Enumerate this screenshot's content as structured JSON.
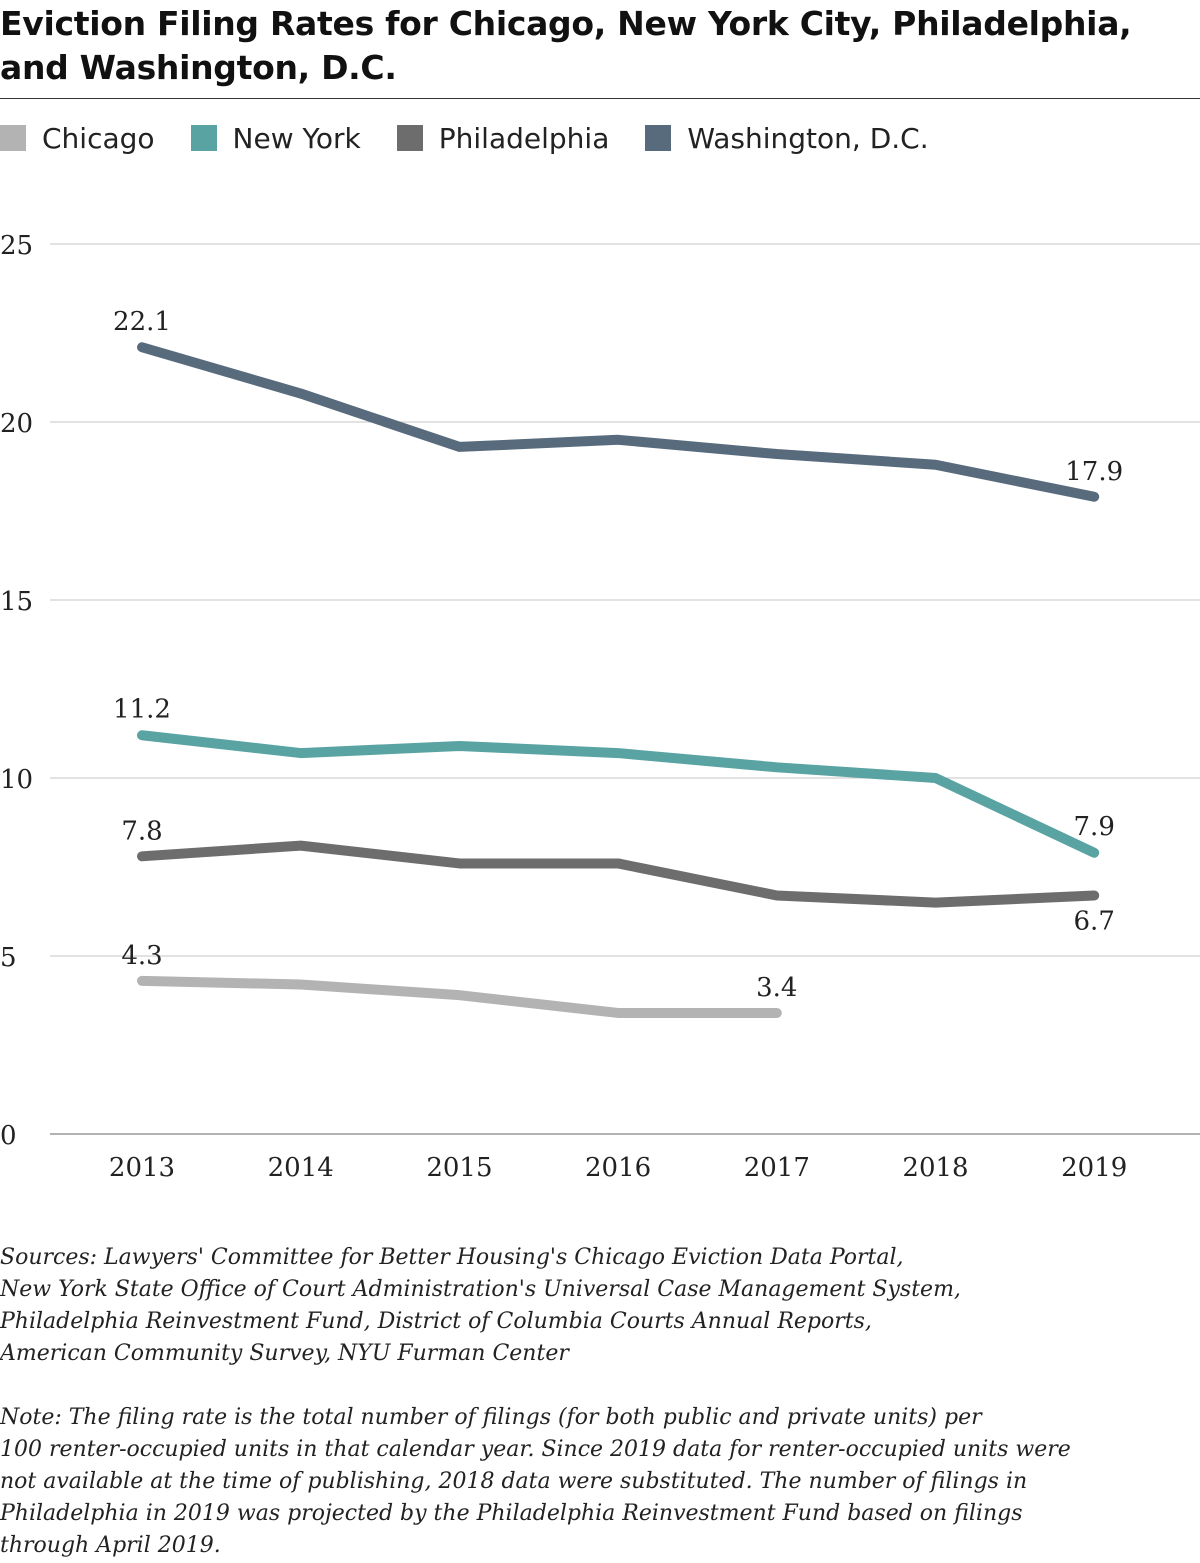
{
  "title_lines": [
    "Eviction Filing Rates for Chicago, New York City, Philadelphia,",
    "and Washington, D.C."
  ],
  "colors": {
    "chicago": "#b3b3b3",
    "new_york": "#5aa3a3",
    "philadelphia": "#6d6d6d",
    "washington": "#586b7d",
    "grid": "#d0d0d0",
    "axis": "#999999"
  },
  "chart_data": {
    "type": "line",
    "title": "Eviction Filing Rates for Chicago, New York City, Philadelphia, and Washington, D.C.",
    "xlabel": "",
    "ylabel": "",
    "x": [
      "2013",
      "2014",
      "2015",
      "2016",
      "2017",
      "2018",
      "2019"
    ],
    "ylim": [
      0,
      25
    ],
    "yticks": [
      "0",
      "5",
      "10",
      "15",
      "20",
      "25"
    ],
    "grid": true,
    "legend_position": "top-left",
    "series": [
      {
        "name": "Chicago",
        "color": "#b3b3b3",
        "values": [
          4.3,
          4.2,
          3.9,
          3.4,
          3.4,
          null,
          null
        ]
      },
      {
        "name": "New York",
        "color": "#5aa3a3",
        "values": [
          11.2,
          10.7,
          10.9,
          10.7,
          10.3,
          10.0,
          7.9
        ]
      },
      {
        "name": "Philadelphia",
        "color": "#6d6d6d",
        "values": [
          7.8,
          8.1,
          7.6,
          7.6,
          6.7,
          6.5,
          6.7
        ]
      },
      {
        "name": "Washington, D.C.",
        "color": "#586b7d",
        "values": [
          22.1,
          20.8,
          19.3,
          19.5,
          19.1,
          18.8,
          17.9
        ]
      }
    ],
    "data_labels": [
      {
        "series": "Washington, D.C.",
        "x": "2013",
        "text": "22.1"
      },
      {
        "series": "Washington, D.C.",
        "x": "2019",
        "text": "17.9"
      },
      {
        "series": "New York",
        "x": "2013",
        "text": "11.2"
      },
      {
        "series": "New York",
        "x": "2019",
        "text": "7.9"
      },
      {
        "series": "Philadelphia",
        "x": "2013",
        "text": "7.8"
      },
      {
        "series": "Philadelphia",
        "x": "2019",
        "text": "6.7"
      },
      {
        "series": "Chicago",
        "x": "2013",
        "text": "4.3"
      },
      {
        "series": "Chicago",
        "x": "2017",
        "text": "3.4"
      }
    ]
  },
  "sources": {
    "lines": [
      "Sources: Lawyers' Committee for Better Housing's Chicago Eviction Data Portal,",
      "New York State Office of Court Administration's Universal Case Management System,",
      "Philadelphia Reinvestment Fund, District of Columbia Courts Annual Reports,",
      "American Community Survey, NYU Furman Center"
    ]
  },
  "note": {
    "lines": [
      "Note: The filing rate is the total number of filings (for both public and private units) per",
      "100 renter-occupied units in that calendar year. Since 2019 data for renter-occupied units were",
      "not available at the time of publishing, 2018 data were substituted. The number of filings in",
      "Philadelphia in 2019 was projected by the Philadelphia Reinvestment Fund based on filings",
      "through April 2019."
    ]
  }
}
